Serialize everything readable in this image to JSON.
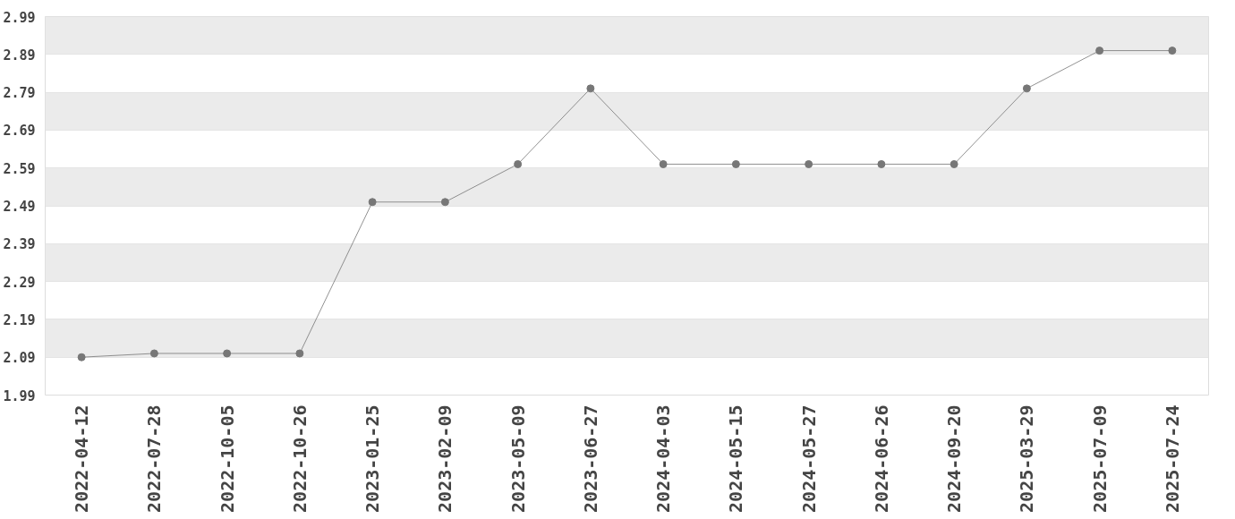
{
  "chart_data": {
    "type": "line",
    "categories": [
      "2022-04-12",
      "2022-07-28",
      "2022-10-05",
      "2022-10-26",
      "2023-01-25",
      "2023-02-09",
      "2023-05-09",
      "2023-06-27",
      "2024-04-03",
      "2024-05-15",
      "2024-05-27",
      "2024-06-26",
      "2024-09-20",
      "2025-03-29",
      "2025-07-09",
      "2025-07-24"
    ],
    "series": [
      {
        "color": "#777777",
        "values": [
          2.09,
          2.1,
          2.1,
          2.1,
          2.5,
          2.5,
          2.6,
          2.8,
          2.6,
          2.6,
          2.6,
          2.6,
          2.6,
          2.8,
          2.9,
          2.9
        ]
      }
    ],
    "ylim": [
      1.99,
      2.99
    ],
    "yticks": [
      {
        "value": 1.99,
        "label": "1.99"
      },
      {
        "value": 2.09,
        "label": "2.09"
      },
      {
        "value": 2.19,
        "label": "2.19"
      },
      {
        "value": 2.29,
        "label": "2.29"
      },
      {
        "value": 2.39,
        "label": "2.39"
      },
      {
        "value": 2.49,
        "label": "2.49"
      },
      {
        "value": 2.59,
        "label": "2.59"
      },
      {
        "value": 2.69,
        "label": "2.69"
      },
      {
        "value": 2.79,
        "label": "2.79"
      },
      {
        "value": 2.89,
        "label": "2.89"
      },
      {
        "value": 2.99,
        "label": "2.99"
      }
    ],
    "grid": "y",
    "marker": "circle",
    "line_style": "solid"
  }
}
